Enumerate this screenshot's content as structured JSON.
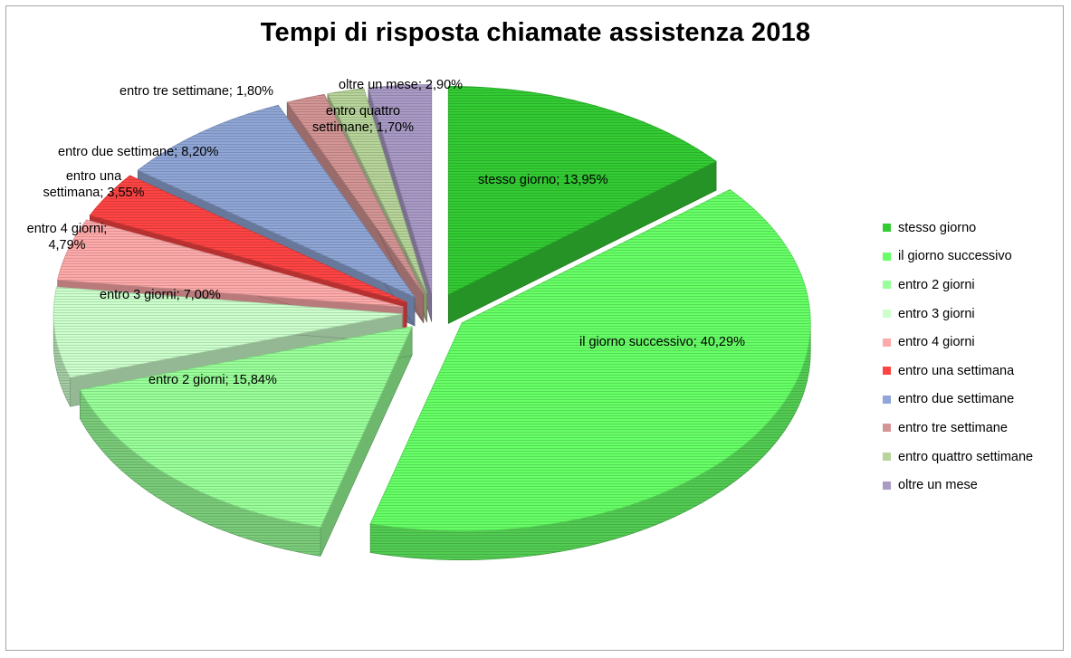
{
  "chart_data": {
    "type": "pie",
    "title": "Tempi di risposta chiamate assistenza 2018",
    "legend_position": "right",
    "slices": [
      {
        "name": "stesso giorno",
        "label": "stesso giorno; 13,95%",
        "value": 13.95,
        "color": "#33cc33"
      },
      {
        "name": "il giorno successivo",
        "label": "il giorno successivo; 40,29%",
        "value": 40.29,
        "color": "#66ff66"
      },
      {
        "name": "entro 2 giorni",
        "label": "entro 2 giorni; 15,84%",
        "value": 15.84,
        "color": "#99ff99"
      },
      {
        "name": "entro 3 giorni",
        "label": "entro 3 giorni; 7,00%",
        "value": 7.0,
        "color": "#ccffcc"
      },
      {
        "name": "entro 4 giorni",
        "label_lines": [
          "entro 4 giorni;",
          "4,79%"
        ],
        "value": 4.79,
        "color": "#ffaaaa"
      },
      {
        "name": "entro una settimana",
        "label_lines": [
          "entro una",
          "settimana; 3,55%"
        ],
        "value": 3.55,
        "color": "#ff4444"
      },
      {
        "name": "entro due settimane",
        "label": "entro due settimane; 8,20%",
        "value": 8.2,
        "color": "#8fa6d6"
      },
      {
        "name": "entro tre settimane",
        "label": "entro tre settimane; 1,80%",
        "value": 1.8,
        "color": "#d49595"
      },
      {
        "name": "entro quattro settimane",
        "label_lines": [
          "entro quattro",
          "settimane; 1,70%"
        ],
        "value": 1.7,
        "color": "#b7d49a"
      },
      {
        "name": "oltre un mese",
        "label": "oltre un mese; 2,90%",
        "value": 2.9,
        "color": "#a99ac6"
      }
    ]
  }
}
